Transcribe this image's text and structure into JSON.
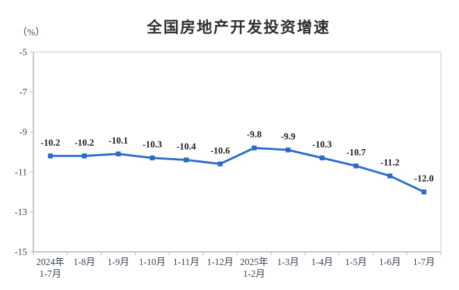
{
  "chart": {
    "title": "全国房地产开发投资增速",
    "unit_label": "（%）"
  },
  "chart_data": {
    "type": "line",
    "title": "全国房地产开发投资增速",
    "xlabel": "",
    "ylabel": "（%）",
    "categories": [
      "2024年\n1-7月",
      "1-8月",
      "1-9月",
      "1-10月",
      "1-11月",
      "1-12月",
      "2025年\n1-2月",
      "1-3月",
      "1-4月",
      "1-5月",
      "1-6月",
      "1-7月"
    ],
    "values": [
      -10.2,
      -10.2,
      -10.1,
      -10.3,
      -10.4,
      -10.6,
      -9.8,
      -9.9,
      -10.3,
      -10.7,
      -11.2,
      -12.0
    ],
    "data_labels": [
      "-10.2",
      "-10.2",
      "-10.1",
      "-10.3",
      "-10.4",
      "-10.6",
      "-9.8",
      "-9.9",
      "-10.3",
      "-10.7",
      "-11.2",
      "-12.0"
    ],
    "ylim": [
      -15,
      -5
    ],
    "yticks": [
      -5,
      -7,
      -9,
      -11,
      -13,
      -15
    ],
    "grid": false,
    "legend": "none",
    "line_color": "#2b6cc8",
    "marker": "square",
    "marker_color": "#2b6cc8",
    "plot_border_color": "#d9d9d9",
    "axis_line_color": "#ababab",
    "tick_color": "#bdbdbd",
    "title_color": "#2f2f2f",
    "data_label_color": "#1f1f1f",
    "axis_text_color": "#3a4254"
  }
}
